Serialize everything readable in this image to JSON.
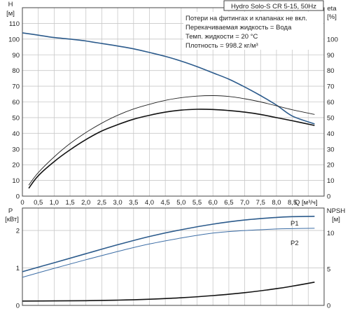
{
  "colors": {
    "blue": "#2c5b8c",
    "light_blue": "#3d6ea6",
    "black": "#111111",
    "grid": "#c8c8c8"
  },
  "chart_data": [
    {
      "type": "line",
      "title": "Hydro Solo-S CR 5-15, 50Hz",
      "notes": [
        "Потери на фитингах и клапанах не вкл.",
        "Перекачиваемая жидкость = Вода",
        "Темп. жидкости = 20 °C",
        "Плотность = 998.2 кг/м³"
      ],
      "xlabel": "Q [м³/ч]",
      "xlim": [
        0,
        9.5
      ],
      "x_ticks": [
        "0",
        "0,5",
        "1,0",
        "1,5",
        "2,0",
        "2,5",
        "3,0",
        "3,5",
        "4,0",
        "4,5",
        "5,0",
        "5,5",
        "6,0",
        "6,5",
        "7,0",
        "7,5",
        "8,0",
        "8,5"
      ],
      "ylabel_left": [
        "H",
        "[м]"
      ],
      "ylim_left": [
        0,
        120
      ],
      "y_ticks_left": [
        "0",
        "10",
        "20",
        "30",
        "40",
        "50",
        "60",
        "70",
        "80",
        "90",
        "100",
        "110"
      ],
      "ylabel_right": [
        "eta",
        "[%]"
      ],
      "ylim_right": [
        0,
        120
      ],
      "y_ticks_right": [
        "0",
        "10",
        "20",
        "30",
        "40",
        "50",
        "60",
        "70",
        "80",
        "90",
        "100"
      ],
      "grid": true,
      "series": [
        {
          "axis": "left",
          "color": "#2c5b8c",
          "width": 1.6,
          "x": [
            0,
            0.5,
            1,
            1.5,
            2,
            2.5,
            3,
            3.5,
            4,
            4.5,
            5,
            5.5,
            6,
            6.5,
            7,
            7.5,
            8,
            8.5,
            9.2
          ],
          "values": [
            104,
            102.5,
            101,
            100,
            98.8,
            97.2,
            95.6,
            93.8,
            91.5,
            89,
            86,
            82.5,
            78.5,
            74.5,
            69.5,
            64,
            58,
            51,
            46
          ]
        },
        {
          "axis": "right",
          "color": "#222222",
          "width": 0.9,
          "x": [
            0.2,
            0.5,
            1,
            1.5,
            2,
            2.5,
            3,
            3.5,
            4,
            4.5,
            5,
            5.5,
            6,
            6.5,
            7,
            7.5,
            8,
            8.5,
            9.2
          ],
          "values": [
            7,
            15,
            25,
            33.5,
            40.5,
            46.5,
            51.5,
            55.5,
            58.5,
            61,
            62.7,
            63.7,
            64,
            63.5,
            62,
            60,
            57.5,
            55,
            52
          ]
        },
        {
          "axis": "right",
          "color": "#111111",
          "width": 1.6,
          "x": [
            0.2,
            0.5,
            1,
            1.5,
            2,
            2.5,
            3,
            3.5,
            4,
            4.5,
            5,
            5.5,
            6,
            6.5,
            7,
            7.5,
            8,
            8.5,
            9.2
          ],
          "values": [
            5,
            13,
            22,
            29.5,
            36,
            41.5,
            45.5,
            49,
            51.5,
            53.5,
            54.8,
            55.3,
            55.2,
            54.5,
            53.5,
            52,
            50,
            48,
            45
          ]
        }
      ]
    },
    {
      "type": "line",
      "xlim": [
        0,
        9.5
      ],
      "ylabel_left": [
        "P",
        "[кВт]"
      ],
      "ylim_left": [
        0,
        2.6
      ],
      "y_ticks_left": [
        "0",
        "1",
        "2"
      ],
      "ylabel_right": [
        "NPSH",
        "[м]"
      ],
      "ylim_right": [
        0,
        13.4
      ],
      "y_ticks_right": [
        "0",
        "5",
        "10"
      ],
      "grid": true,
      "series": [
        {
          "name": "P1",
          "axis": "left",
          "color": "#2c5b8c",
          "width": 1.6,
          "x": [
            0,
            1,
            2,
            3,
            4,
            5,
            6,
            7,
            8,
            8.5,
            9.2
          ],
          "values": [
            0.9,
            1.14,
            1.38,
            1.62,
            1.84,
            2.02,
            2.17,
            2.28,
            2.35,
            2.37,
            2.38
          ]
        },
        {
          "name": "P2",
          "axis": "left",
          "color": "#3d6ea6",
          "width": 1.0,
          "x": [
            0,
            1,
            2,
            3,
            4,
            5,
            6,
            7,
            8,
            8.5,
            9.2
          ],
          "values": [
            0.75,
            0.99,
            1.22,
            1.44,
            1.64,
            1.8,
            1.93,
            2.0,
            2.04,
            2.05,
            2.06
          ]
        },
        {
          "axis": "right",
          "color": "#111111",
          "width": 1.6,
          "x": [
            0,
            1,
            2,
            3,
            4,
            5,
            6,
            7,
            8,
            8.5,
            9.2
          ],
          "values": [
            0.6,
            0.62,
            0.65,
            0.72,
            0.85,
            1.05,
            1.35,
            1.75,
            2.3,
            2.65,
            3.2
          ]
        }
      ]
    }
  ]
}
